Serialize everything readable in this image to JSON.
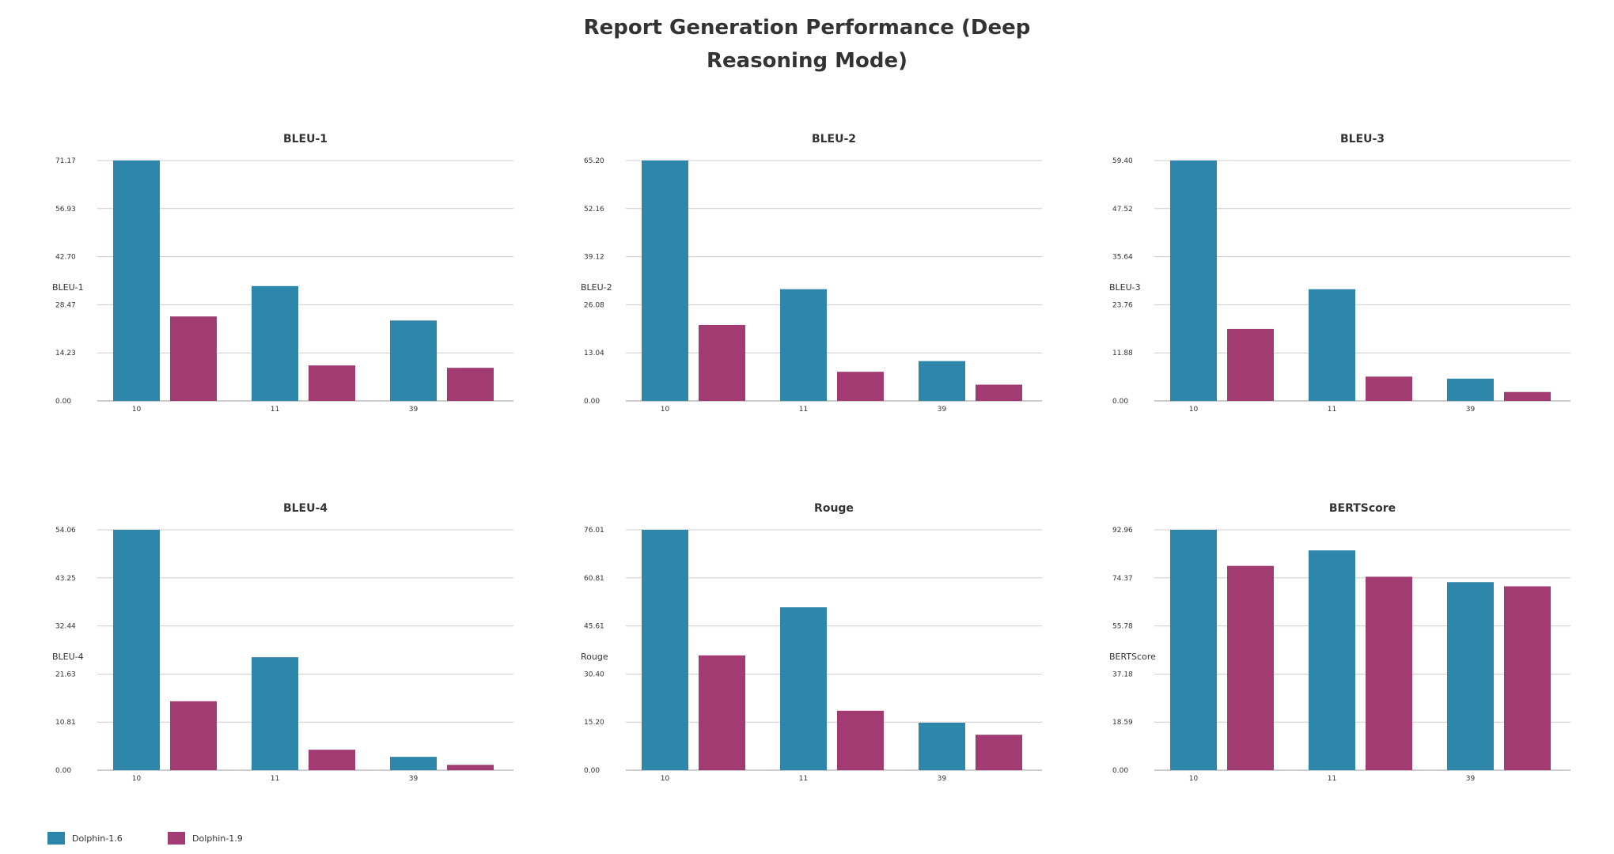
{
  "title_line1": "Report Generation Performance (Deep",
  "title_line2": "Reasoning Mode)",
  "legend": [
    {
      "label": "Dolphin-1.6",
      "color": "#2e86ab"
    },
    {
      "label": "Dolphin-1.9",
      "color": "#a23b72"
    }
  ],
  "chart_data": [
    {
      "type": "bar",
      "title": "BLEU-1",
      "ylabel": "BLEU-1",
      "categories": [
        "10",
        "11",
        "39"
      ],
      "yticks": [
        "0.00",
        "14.23",
        "28.47",
        "42.70",
        "56.93",
        "71.17"
      ],
      "ylim": [
        0,
        71.17
      ],
      "grid": true,
      "series": [
        {
          "name": "Dolphin-1.6",
          "values": [
            71.17,
            34.0,
            23.8
          ]
        },
        {
          "name": "Dolphin-1.9",
          "values": [
            25.0,
            10.5,
            9.8
          ]
        }
      ]
    },
    {
      "type": "bar",
      "title": "BLEU-2",
      "ylabel": "BLEU-2",
      "categories": [
        "10",
        "11",
        "39"
      ],
      "yticks": [
        "0.00",
        "13.04",
        "26.08",
        "39.12",
        "52.16",
        "65.20"
      ],
      "ylim": [
        0,
        65.2
      ],
      "grid": true,
      "series": [
        {
          "name": "Dolphin-1.6",
          "values": [
            65.2,
            30.3,
            10.8
          ]
        },
        {
          "name": "Dolphin-1.9",
          "values": [
            20.6,
            7.9,
            4.4
          ]
        }
      ]
    },
    {
      "type": "bar",
      "title": "BLEU-3",
      "ylabel": "BLEU-3",
      "categories": [
        "10",
        "11",
        "39"
      ],
      "yticks": [
        "0.00",
        "11.88",
        "23.76",
        "35.64",
        "47.52",
        "59.40"
      ],
      "ylim": [
        0,
        59.4
      ],
      "grid": true,
      "series": [
        {
          "name": "Dolphin-1.6",
          "values": [
            59.4,
            27.6,
            5.5
          ]
        },
        {
          "name": "Dolphin-1.9",
          "values": [
            17.8,
            6.0,
            2.2
          ]
        }
      ]
    },
    {
      "type": "bar",
      "title": "BLEU-4",
      "ylabel": "BLEU-4",
      "categories": [
        "10",
        "11",
        "39"
      ],
      "yticks": [
        "0.00",
        "10.81",
        "21.63",
        "32.44",
        "43.25",
        "54.06"
      ],
      "ylim": [
        0,
        54.06
      ],
      "grid": true,
      "series": [
        {
          "name": "Dolphin-1.6",
          "values": [
            54.06,
            25.4,
            3.0
          ]
        },
        {
          "name": "Dolphin-1.9",
          "values": [
            15.5,
            4.6,
            1.2
          ]
        }
      ]
    },
    {
      "type": "bar",
      "title": "Rouge",
      "ylabel": "Rouge",
      "categories": [
        "10",
        "11",
        "39"
      ],
      "yticks": [
        "0.00",
        "15.20",
        "30.40",
        "45.61",
        "60.81",
        "76.01"
      ],
      "ylim": [
        0,
        76.01
      ],
      "grid": true,
      "series": [
        {
          "name": "Dolphin-1.6",
          "values": [
            76.01,
            51.5,
            15.0
          ]
        },
        {
          "name": "Dolphin-1.9",
          "values": [
            36.3,
            18.8,
            11.2
          ]
        }
      ]
    },
    {
      "type": "bar",
      "title": "BERTScore",
      "ylabel": "BERTScore",
      "categories": [
        "10",
        "11",
        "39"
      ],
      "yticks": [
        "0.00",
        "18.59",
        "37.18",
        "55.78",
        "74.37",
        "92.96"
      ],
      "ylim": [
        0,
        92.96
      ],
      "grid": true,
      "series": [
        {
          "name": "Dolphin-1.6",
          "values": [
            92.96,
            85.0,
            72.7
          ]
        },
        {
          "name": "Dolphin-1.9",
          "values": [
            79.0,
            74.8,
            71.1
          ]
        }
      ]
    }
  ]
}
